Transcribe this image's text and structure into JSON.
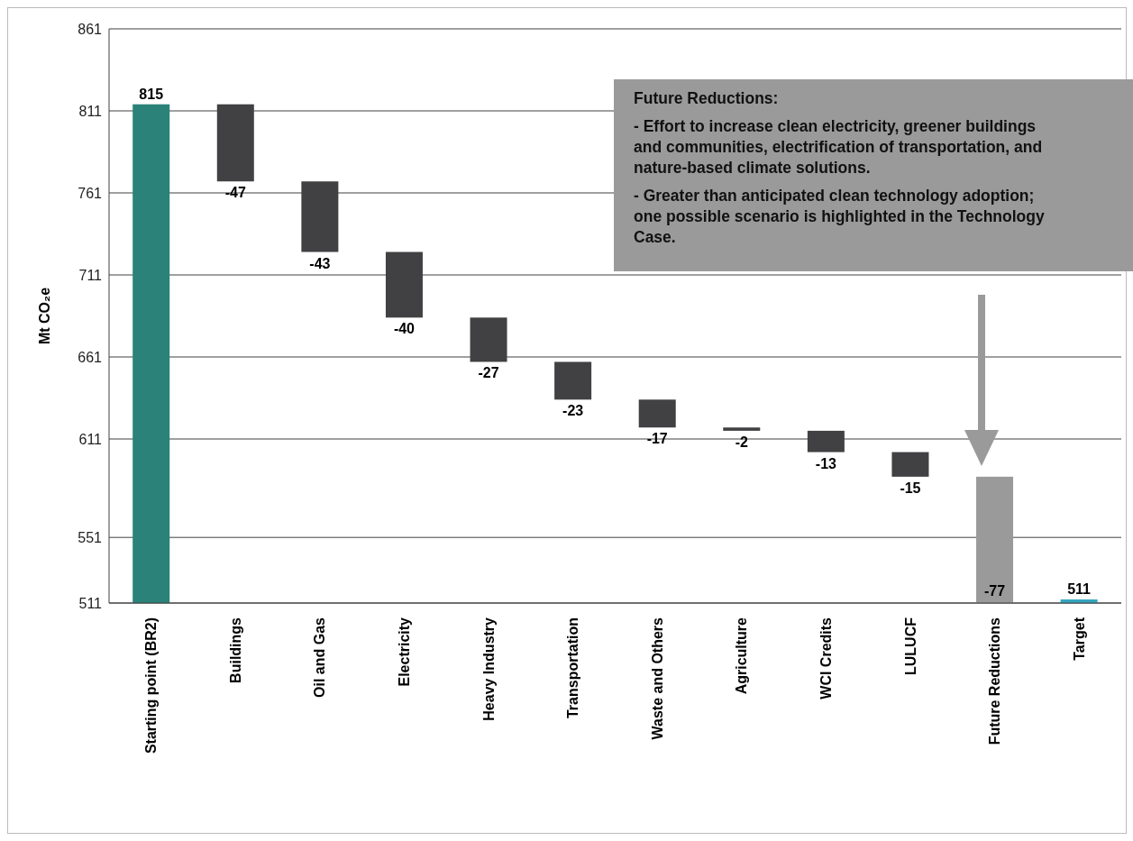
{
  "chart_data": {
    "type": "bar",
    "ylabel": "Mt CO₂e",
    "categories": [
      "Starting point (BR2)",
      "Buildings",
      "Oil and Gas",
      "Electricity",
      "Heavy Industry",
      "Transportation",
      "Waste and Others",
      "Agriculture",
      "WCI Credits",
      "LULUCF",
      "Future Reductions",
      "Target"
    ],
    "values": [
      815,
      -47,
      -43,
      -40,
      -27,
      -23,
      -17,
      -2,
      -13,
      -15,
      -77,
      511
    ],
    "base": [
      null,
      815,
      768,
      725,
      685,
      658,
      635,
      618,
      616,
      603,
      588,
      null
    ],
    "colors": [
      "#2a8278",
      "#414042",
      "#414042",
      "#414042",
      "#414042",
      "#414042",
      "#414042",
      "#414042",
      "#414042",
      "#414042",
      "#9b9a9b",
      "#35a5c0"
    ],
    "data_labels": true,
    "ylim": [
      511,
      861
    ],
    "yticks": [
      511,
      551,
      611,
      661,
      711,
      761,
      811,
      861
    ],
    "grid": "y",
    "annotations": [
      "Future Reductions:",
      "- Effort to increase clean electricity, greener buildings and communities, electrification of transportation, and nature-based climate solutions.",
      "- Greater than anticipated clean technology adoption; one possible scenario is highlighted in the Technology Case."
    ]
  }
}
